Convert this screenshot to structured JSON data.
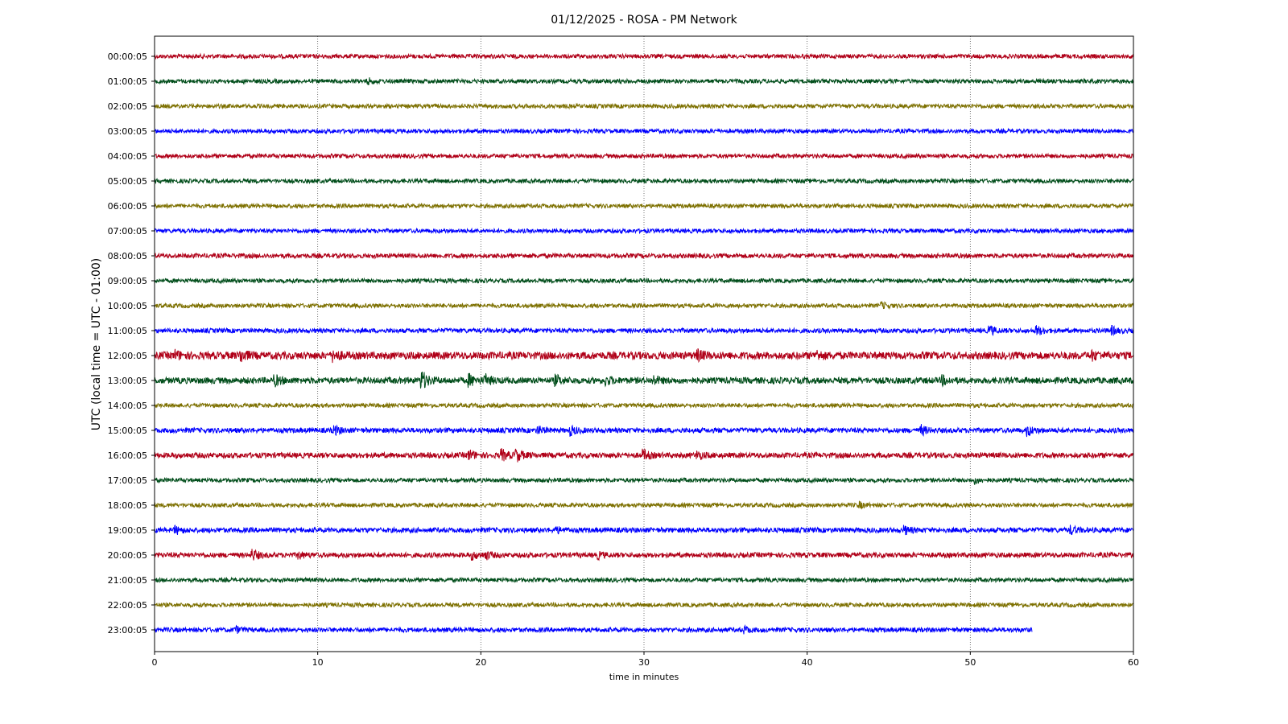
{
  "chart_data": {
    "type": "line",
    "subtype": "helicorder",
    "title": "01/12/2025 - ROSA - PM Network",
    "xlabel": "time in minutes",
    "ylabel": "UTC (local time = UTC - 01:00)",
    "xlim": [
      0,
      60
    ],
    "xticks": [
      "0",
      "10",
      "20",
      "30",
      "40",
      "50",
      "60"
    ],
    "grid": "vertical dotted at every 10 minutes",
    "colors": [
      "#b00018",
      "#004d1a",
      "#7d7000",
      "#0000ff"
    ],
    "rows": [
      {
        "label": "00:00:05",
        "noise": 1.0,
        "events": []
      },
      {
        "label": "01:00:05",
        "noise": 1.0,
        "events": [
          [
            13.1,
            3
          ]
        ]
      },
      {
        "label": "02:00:05",
        "noise": 1.0,
        "events": []
      },
      {
        "label": "03:00:05",
        "noise": 1.0,
        "events": []
      },
      {
        "label": "04:00:05",
        "noise": 1.0,
        "events": []
      },
      {
        "label": "05:00:05",
        "noise": 1.0,
        "events": []
      },
      {
        "label": "06:00:05",
        "noise": 1.0,
        "events": []
      },
      {
        "label": "07:00:05",
        "noise": 1.0,
        "events": []
      },
      {
        "label": "08:00:05",
        "noise": 1.1,
        "events": []
      },
      {
        "label": "09:00:05",
        "noise": 1.0,
        "events": []
      },
      {
        "label": "10:00:05",
        "noise": 1.0,
        "events": [
          [
            44.6,
            3
          ]
        ]
      },
      {
        "label": "11:00:05",
        "noise": 1.1,
        "events": [
          [
            51.2,
            5
          ],
          [
            54.1,
            5
          ],
          [
            58.7,
            4
          ]
        ]
      },
      {
        "label": "12:00:05",
        "noise": 1.8,
        "events": [
          [
            1.3,
            4
          ],
          [
            5.3,
            6
          ],
          [
            11,
            5
          ],
          [
            33.3,
            5
          ],
          [
            40.6,
            4
          ],
          [
            57.5,
            4
          ]
        ]
      },
      {
        "label": "13:00:05",
        "noise": 1.5,
        "events": [
          [
            7.4,
            5
          ],
          [
            16.4,
            10
          ],
          [
            19.3,
            6
          ],
          [
            20.3,
            5
          ],
          [
            24.6,
            5
          ],
          [
            27.7,
            4
          ],
          [
            30.6,
            4
          ],
          [
            48.3,
            4
          ]
        ]
      },
      {
        "label": "14:00:05",
        "noise": 1.0,
        "events": []
      },
      {
        "label": "15:00:05",
        "noise": 1.2,
        "events": [
          [
            11,
            5
          ],
          [
            23.5,
            4
          ],
          [
            25.5,
            5
          ],
          [
            47,
            5
          ],
          [
            53.5,
            6
          ]
        ]
      },
      {
        "label": "16:00:05",
        "noise": 1.3,
        "events": [
          [
            19.3,
            5
          ],
          [
            21.3,
            6
          ],
          [
            22.2,
            6
          ],
          [
            30,
            5
          ],
          [
            33.3,
            4
          ]
        ]
      },
      {
        "label": "17:00:05",
        "noise": 1.0,
        "events": [
          [
            50.3,
            3
          ]
        ]
      },
      {
        "label": "18:00:05",
        "noise": 1.0,
        "events": [
          [
            43.2,
            3
          ]
        ]
      },
      {
        "label": "19:00:05",
        "noise": 1.2,
        "events": [
          [
            1.3,
            4
          ],
          [
            24.6,
            3
          ],
          [
            46,
            4
          ],
          [
            56.2,
            4
          ]
        ]
      },
      {
        "label": "20:00:05",
        "noise": 1.2,
        "events": [
          [
            6,
            6
          ],
          [
            8.8,
            4
          ],
          [
            19.5,
            4
          ],
          [
            20.3,
            4
          ],
          [
            27.2,
            3
          ]
        ]
      },
      {
        "label": "21:00:05",
        "noise": 1.0,
        "events": []
      },
      {
        "label": "22:00:05",
        "noise": 1.0,
        "events": []
      },
      {
        "label": "23:00:05",
        "noise": 1.1,
        "events": [
          [
            5,
            3
          ],
          [
            36.2,
            3
          ]
        ],
        "end_minute": 53.8
      }
    ]
  }
}
